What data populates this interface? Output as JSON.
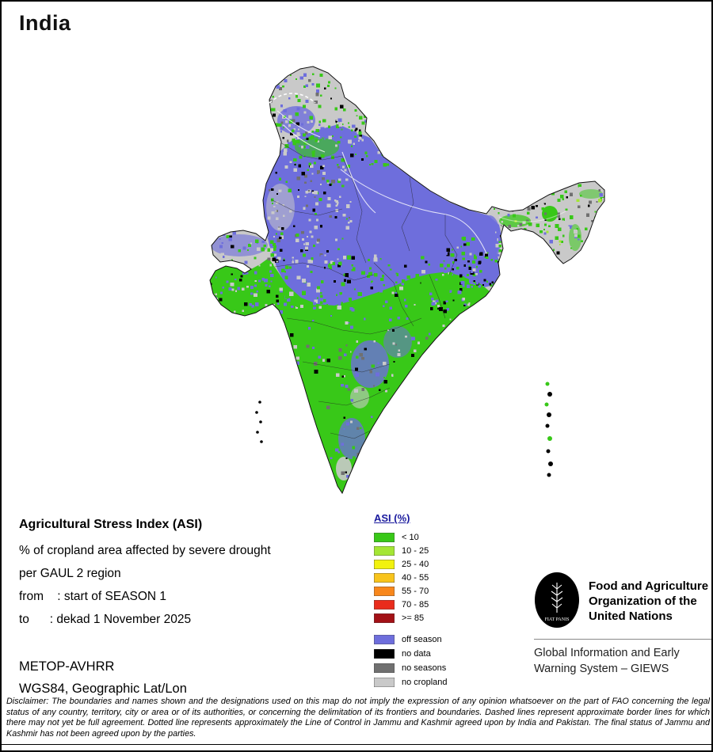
{
  "page": {
    "title": "India"
  },
  "info": {
    "heading": "Agricultural Stress Index (ASI)",
    "line1": "% of cropland area affected by severe drought",
    "line2": "per GAUL 2 region",
    "from_line": "from    : start of SEASON 1",
    "to_line": "to      : dekad 1 November 2025",
    "sensor": "METOP-AVHRR",
    "projection": "WGS84, Geographic Lat/Lon"
  },
  "legend": {
    "title": "ASI (%)",
    "title_color": "#1a1a9e",
    "items": [
      {
        "label": "< 10",
        "color": "#38c818"
      },
      {
        "label": "10 - 25",
        "color": "#a4e634"
      },
      {
        "label": "25 - 40",
        "color": "#f2f20e"
      },
      {
        "label": "40 - 55",
        "color": "#f8c41c"
      },
      {
        "label": "55 - 70",
        "color": "#f8871c"
      },
      {
        "label": "70 - 85",
        "color": "#e92c1c"
      },
      {
        "label": ">= 85",
        "color": "#a31116"
      }
    ],
    "extra_items": [
      {
        "label": "off season",
        "color": "#6e6edc"
      },
      {
        "label": "no data",
        "color": "#000000"
      },
      {
        "label": "no seasons",
        "color": "#707070"
      },
      {
        "label": "no cropland",
        "color": "#c9c9c9"
      }
    ]
  },
  "org": {
    "logo_motto": "FIAT PANIS",
    "name": "Food and Agriculture Organization of the United Nations",
    "subtitle": "Global Information and Early Warning System – GIEWS"
  },
  "disclaimer": "Disclaimer: The boundaries and names shown and the designations used on this map do not imply the expression of any opinion whatsoever on the part of FAO concerning the legal status of any country, territory, city or area or of its authorities, or concerning the delimitation of its frontiers and boundaries. Dashed lines represent approximate border lines for which there may not yet be full agreement. Dotted line represents approximately the Line of Control in Jammu and Kashmir agreed upon by India and Pakistan. The final status of Jammu and Kashmir has not been agreed upon by the parties."
}
